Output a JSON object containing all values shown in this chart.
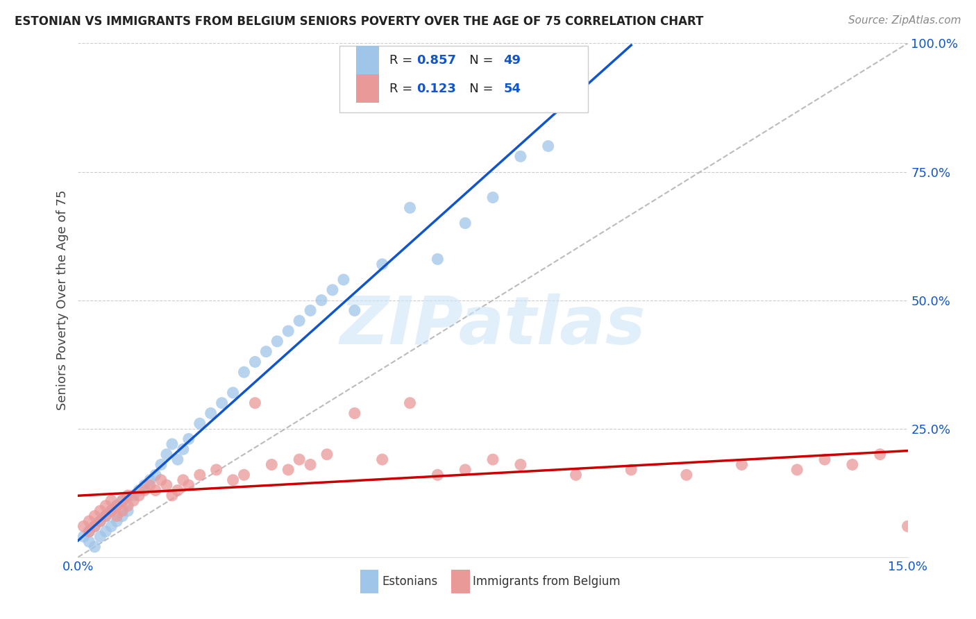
{
  "title": "ESTONIAN VS IMMIGRANTS FROM BELGIUM SENIORS POVERTY OVER THE AGE OF 75 CORRELATION CHART",
  "source": "Source: ZipAtlas.com",
  "ylabel": "Seniors Poverty Over the Age of 75",
  "xlim": [
    0.0,
    0.15
  ],
  "ylim": [
    0.0,
    1.0
  ],
  "xticks": [
    0.0,
    0.025,
    0.05,
    0.075,
    0.1,
    0.125,
    0.15
  ],
  "yticks": [
    0.0,
    0.25,
    0.5,
    0.75,
    1.0
  ],
  "blue_color": "#9fc5e8",
  "pink_color": "#ea9999",
  "blue_line_color": "#1155cc",
  "pink_line_color": "#cc0000",
  "r_blue": "0.857",
  "n_blue": "49",
  "r_pink": "0.123",
  "n_pink": "54",
  "legend_label_blue": "Estonians",
  "legend_label_pink": "Immigrants from Belgium",
  "watermark": "ZIPatlas",
  "blue_x": [
    0.001,
    0.002,
    0.002,
    0.003,
    0.003,
    0.004,
    0.004,
    0.005,
    0.005,
    0.006,
    0.006,
    0.007,
    0.007,
    0.008,
    0.008,
    0.009,
    0.01,
    0.011,
    0.012,
    0.013,
    0.014,
    0.015,
    0.016,
    0.017,
    0.018,
    0.019,
    0.02,
    0.022,
    0.024,
    0.026,
    0.028,
    0.03,
    0.032,
    0.034,
    0.036,
    0.038,
    0.04,
    0.042,
    0.044,
    0.046,
    0.048,
    0.05,
    0.055,
    0.06,
    0.065,
    0.07,
    0.075,
    0.08,
    0.085
  ],
  "blue_y": [
    0.04,
    0.05,
    0.03,
    0.06,
    0.02,
    0.07,
    0.04,
    0.05,
    0.08,
    0.06,
    0.09,
    0.07,
    0.1,
    0.08,
    0.11,
    0.09,
    0.12,
    0.13,
    0.14,
    0.15,
    0.16,
    0.18,
    0.2,
    0.22,
    0.19,
    0.21,
    0.23,
    0.26,
    0.28,
    0.3,
    0.32,
    0.36,
    0.38,
    0.4,
    0.42,
    0.44,
    0.46,
    0.48,
    0.5,
    0.52,
    0.54,
    0.48,
    0.57,
    0.68,
    0.58,
    0.65,
    0.7,
    0.78,
    0.8
  ],
  "pink_x": [
    0.001,
    0.002,
    0.002,
    0.003,
    0.003,
    0.004,
    0.004,
    0.005,
    0.005,
    0.006,
    0.006,
    0.007,
    0.007,
    0.008,
    0.008,
    0.009,
    0.009,
    0.01,
    0.011,
    0.012,
    0.013,
    0.014,
    0.015,
    0.016,
    0.017,
    0.018,
    0.019,
    0.02,
    0.022,
    0.025,
    0.028,
    0.03,
    0.032,
    0.035,
    0.038,
    0.04,
    0.042,
    0.045,
    0.05,
    0.055,
    0.06,
    0.065,
    0.07,
    0.075,
    0.08,
    0.09,
    0.1,
    0.11,
    0.12,
    0.13,
    0.135,
    0.14,
    0.145,
    0.15
  ],
  "pink_y": [
    0.06,
    0.07,
    0.05,
    0.08,
    0.06,
    0.09,
    0.07,
    0.1,
    0.08,
    0.11,
    0.09,
    0.1,
    0.08,
    0.11,
    0.09,
    0.12,
    0.1,
    0.11,
    0.12,
    0.13,
    0.14,
    0.13,
    0.15,
    0.14,
    0.12,
    0.13,
    0.15,
    0.14,
    0.16,
    0.17,
    0.15,
    0.16,
    0.3,
    0.18,
    0.17,
    0.19,
    0.18,
    0.2,
    0.28,
    0.19,
    0.3,
    0.16,
    0.17,
    0.19,
    0.18,
    0.16,
    0.17,
    0.16,
    0.18,
    0.17,
    0.19,
    0.18,
    0.2,
    0.06
  ]
}
